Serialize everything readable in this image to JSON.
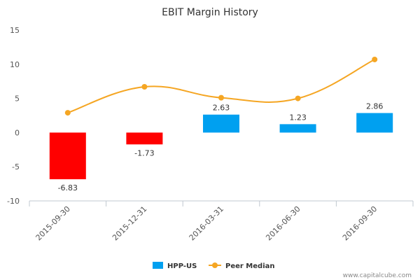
{
  "chart_data": {
    "type": "bar",
    "title": "EBIT Margin History",
    "categories": [
      "2015-09-30",
      "2015-12-31",
      "2016-03-31",
      "2016-06-30",
      "2016-09-30"
    ],
    "ylim": [
      -10,
      15
    ],
    "yticks": [
      15,
      10,
      5,
      0,
      -5,
      -10
    ],
    "grid": false,
    "legend_position": "bottom",
    "series": [
      {
        "name": "HPP-US",
        "kind": "bar",
        "values": [
          -6.83,
          -1.73,
          2.63,
          1.23,
          2.86
        ],
        "data_labels": [
          "-6.83",
          "-1.73",
          "2.63",
          "1.23",
          "2.86"
        ],
        "color_positive": "#00a0f0",
        "color_negative": "#ff0000"
      },
      {
        "name": "Peer Median",
        "kind": "line",
        "values": [
          2.9,
          6.7,
          5.1,
          5.0,
          10.7
        ],
        "color": "#f5a623"
      }
    ]
  },
  "footer": "www.capitalcube.com"
}
